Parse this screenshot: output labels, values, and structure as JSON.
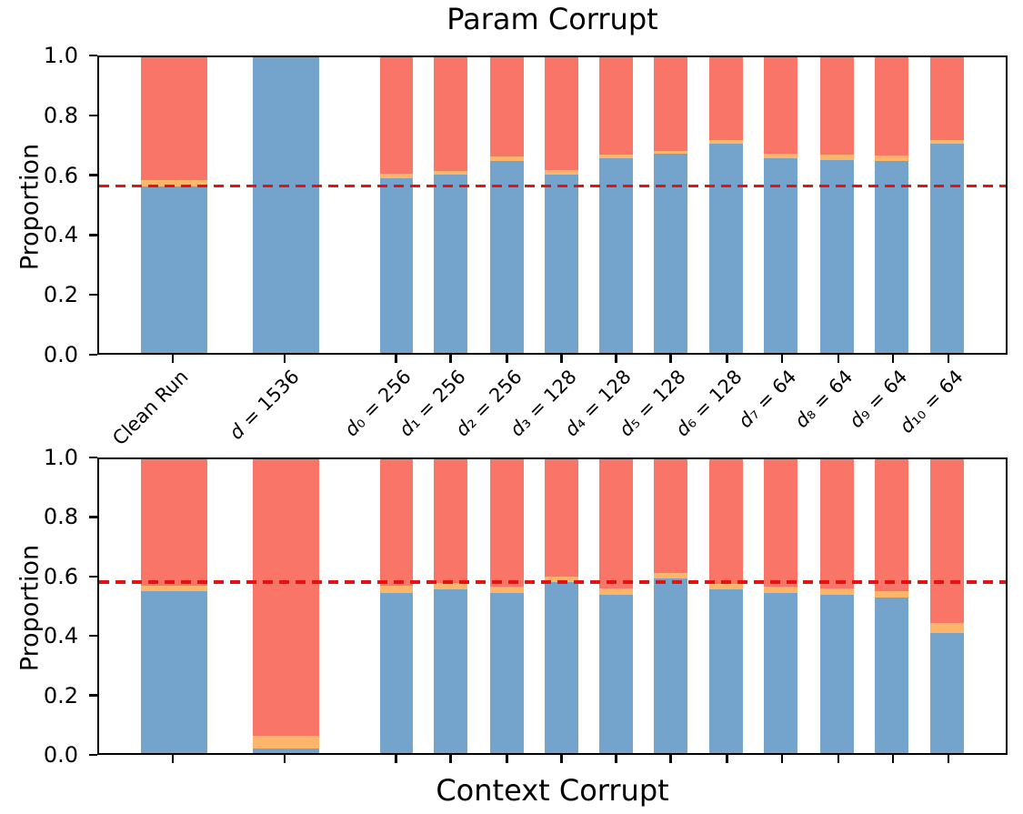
{
  "figure": {
    "background": "#ffffff",
    "text_color": "#000000"
  },
  "chart_data": [
    {
      "type": "bar",
      "stacked": true,
      "title": "Param Corrupt",
      "xlabel": "",
      "ylabel": "Proportion",
      "ylim": [
        0,
        1
      ],
      "yticks": [
        "0.0",
        "0.2",
        "0.4",
        "0.6",
        "0.8",
        "1.0"
      ],
      "grid": false,
      "legend": "none",
      "show_xticklabels": true,
      "categories": [
        "Clean Run",
        "d = 1536",
        "d₀ = 256",
        "d₁ = 256",
        "d₂ = 256",
        "d₃ = 128",
        "d₄ = 128",
        "d₅ = 128",
        "d₆ = 128",
        "d₇ = 64",
        "d₈ = 64",
        "d₉ = 64",
        "d₁₀ = 64"
      ],
      "series": [
        {
          "name": "blue",
          "color": "#74a4cc",
          "values": [
            0.563,
            1.0,
            0.59,
            0.603,
            0.648,
            0.603,
            0.659,
            0.674,
            0.707,
            0.659,
            0.653,
            0.65,
            0.709
          ]
        },
        {
          "name": "orange",
          "color": "#fdb46b",
          "values": [
            0.022,
            0.0,
            0.016,
            0.012,
            0.016,
            0.015,
            0.012,
            0.01,
            0.012,
            0.015,
            0.018,
            0.019,
            0.012
          ]
        },
        {
          "name": "red",
          "color": "#f87568",
          "values": [
            0.415,
            0.0,
            0.394,
            0.385,
            0.336,
            0.382,
            0.329,
            0.316,
            0.281,
            0.326,
            0.329,
            0.331,
            0.279
          ]
        }
      ],
      "reference_line": {
        "y": 0.56,
        "style": "dashed",
        "color": "#ee0e0e"
      },
      "layout": {
        "centers_frac": [
          0.083,
          0.206,
          0.328,
          0.388,
          0.45,
          0.51,
          0.57,
          0.63,
          0.692,
          0.752,
          0.814,
          0.874,
          0.935
        ],
        "widths_frac": [
          0.073,
          0.073,
          0.037,
          0.037,
          0.037,
          0.037,
          0.037,
          0.037,
          0.037,
          0.037,
          0.037,
          0.037,
          0.037
        ],
        "legend_position": "none"
      }
    },
    {
      "type": "bar",
      "stacked": true,
      "title": "",
      "xlabel": "Context Corrupt",
      "ylabel": "Proportion",
      "ylim": [
        0,
        1
      ],
      "yticks": [
        "0.0",
        "0.2",
        "0.4",
        "0.6",
        "0.8",
        "1.0"
      ],
      "grid": false,
      "legend": "none",
      "show_xticklabels": false,
      "categories": [
        "Clean Run",
        "d = 1536",
        "d₀ = 256",
        "d₁ = 256",
        "d₂ = 256",
        "d₃ = 128",
        "d₄ = 128",
        "d₅ = 128",
        "d₆ = 128",
        "d₇ = 64",
        "d₈ = 64",
        "d₉ = 64",
        "d₁₀ = 64"
      ],
      "series": [
        {
          "name": "blue",
          "color": "#74a4cc",
          "values": [
            0.55,
            0.015,
            0.545,
            0.557,
            0.545,
            0.581,
            0.54,
            0.593,
            0.556,
            0.545,
            0.54,
            0.528,
            0.408
          ]
        },
        {
          "name": "orange",
          "color": "#fdb46b",
          "values": [
            0.021,
            0.044,
            0.026,
            0.021,
            0.021,
            0.02,
            0.021,
            0.021,
            0.02,
            0.021,
            0.021,
            0.022,
            0.035
          ]
        },
        {
          "name": "red",
          "color": "#f87568",
          "values": [
            0.429,
            0.941,
            0.429,
            0.422,
            0.434,
            0.399,
            0.439,
            0.386,
            0.424,
            0.434,
            0.439,
            0.45,
            0.557
          ]
        }
      ],
      "reference_line": {
        "y": 0.576,
        "style": "dashed",
        "color": "#ee0e0e"
      },
      "layout": {
        "centers_frac": [
          0.083,
          0.206,
          0.328,
          0.388,
          0.45,
          0.51,
          0.57,
          0.63,
          0.692,
          0.752,
          0.814,
          0.874,
          0.935
        ],
        "widths_frac": [
          0.073,
          0.073,
          0.037,
          0.037,
          0.037,
          0.037,
          0.037,
          0.037,
          0.037,
          0.037,
          0.037,
          0.037,
          0.037
        ],
        "legend_position": "none"
      }
    }
  ]
}
